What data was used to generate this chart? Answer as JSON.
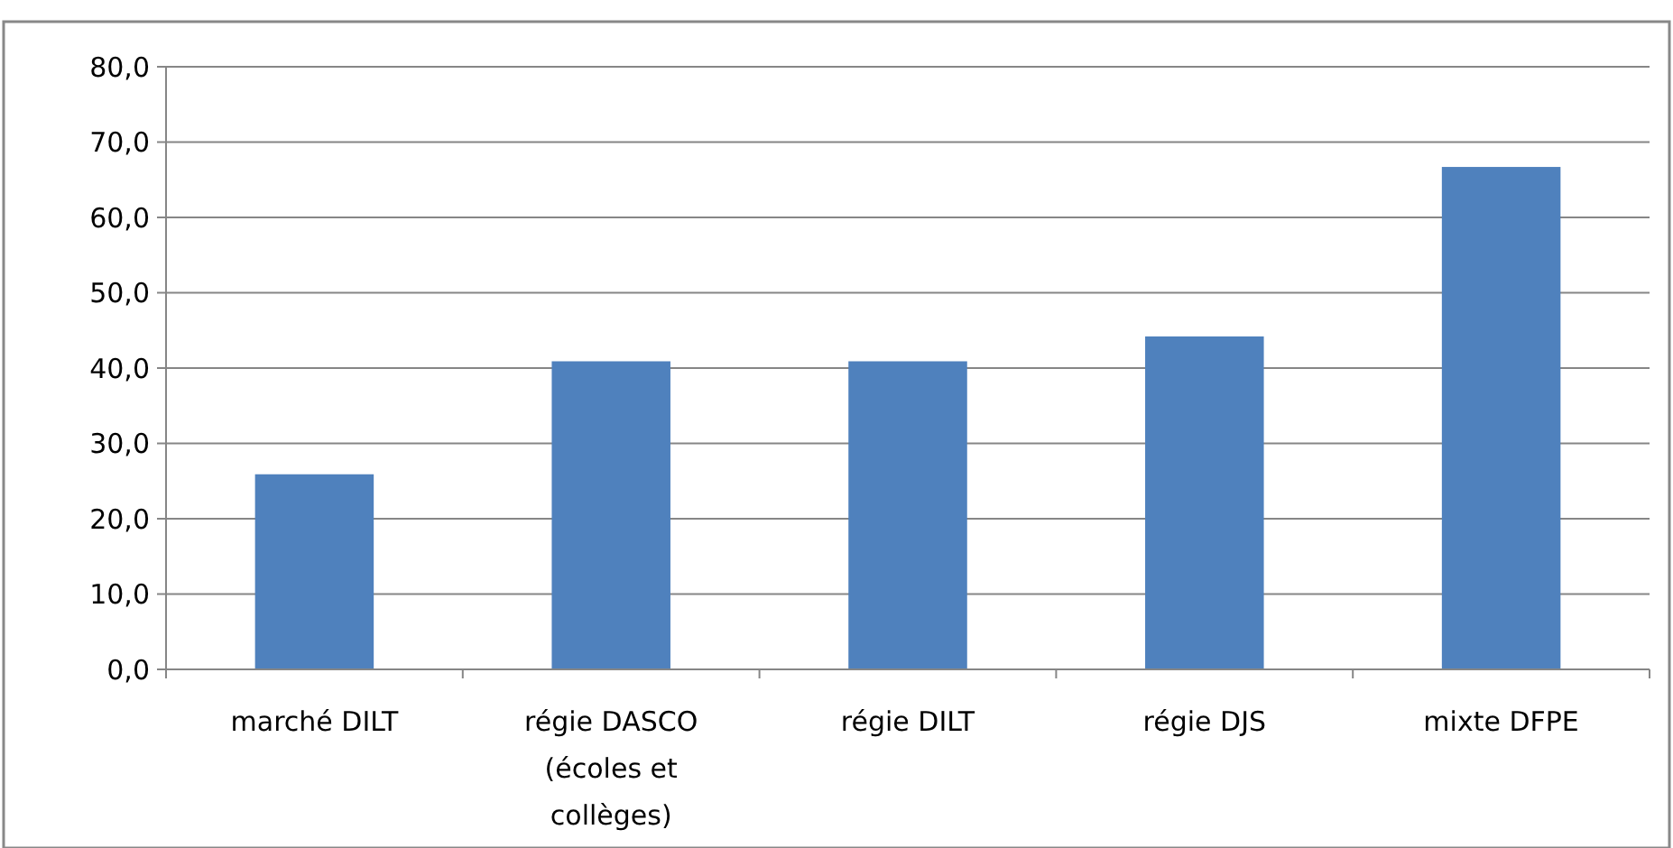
{
  "chart_data": {
    "type": "bar",
    "categories": [
      "marché DILT",
      "régie DASCO (écoles et collèges)",
      "régie DILT",
      "régie DJS",
      "mixte DFPE"
    ],
    "values": [
      25.9,
      40.9,
      40.9,
      44.2,
      66.7
    ],
    "color": "#4f81bd",
    "ylim": [
      0,
      80
    ],
    "yticks": [
      {
        "value": 0,
        "label": "0,0"
      },
      {
        "value": 10,
        "label": "10,0"
      },
      {
        "value": 20,
        "label": "20,0"
      },
      {
        "value": 30,
        "label": "30,0"
      },
      {
        "value": 40,
        "label": "40,0"
      },
      {
        "value": 50,
        "label": "50,0"
      },
      {
        "value": 60,
        "label": "60,0"
      },
      {
        "value": 70,
        "label": "70,0"
      },
      {
        "value": 80,
        "label": "80,0"
      }
    ],
    "grid": "y"
  }
}
